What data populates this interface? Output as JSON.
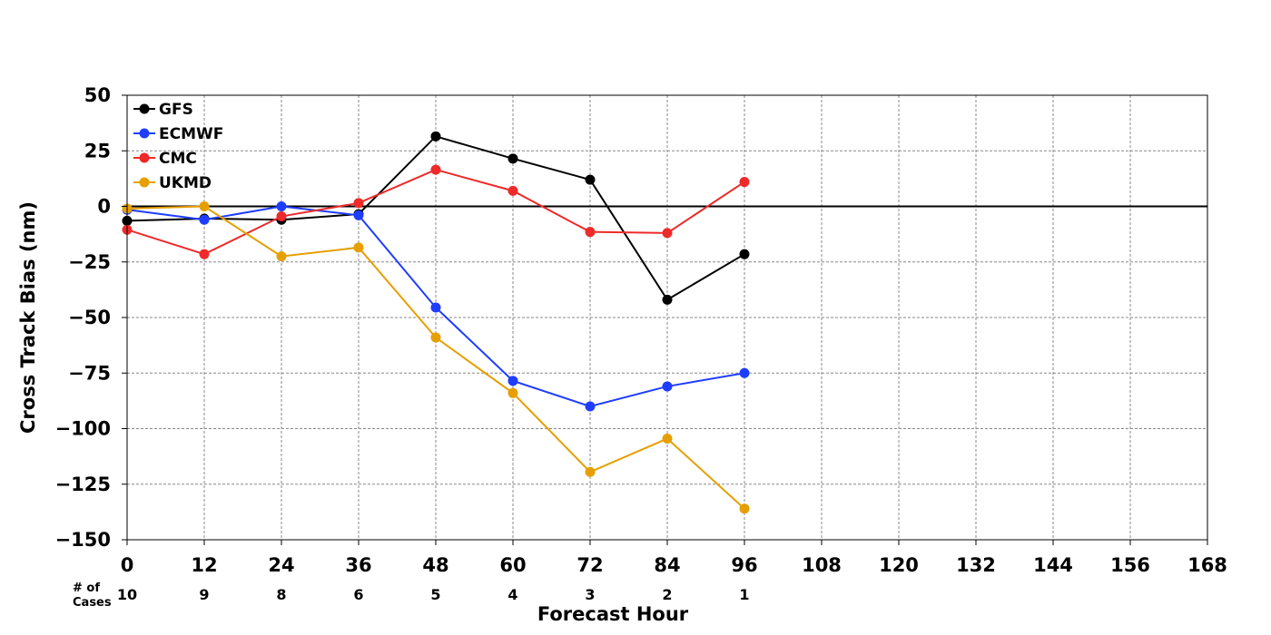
{
  "chart_data": {
    "type": "line",
    "title": "",
    "xlabel": "Forecast Hour",
    "ylabel": "Cross Track Bias (nm)",
    "xlim": [
      0,
      168
    ],
    "ylim": [
      -150,
      50
    ],
    "x_ticks": [
      0,
      12,
      24,
      36,
      48,
      60,
      72,
      84,
      96,
      108,
      120,
      132,
      144,
      156,
      168
    ],
    "x_tick_labels": [
      "0",
      "12",
      "24",
      "36",
      "48",
      "60",
      "72",
      "84",
      "96",
      "108",
      "120",
      "132",
      "144",
      "156",
      "168"
    ],
    "y_ticks": [
      50,
      25,
      0,
      -25,
      -50,
      -75,
      -100,
      -125,
      -150
    ],
    "y_tick_labels": [
      "50",
      "25",
      "0",
      "−25",
      "−50",
      "−75",
      "−100",
      "−125",
      "−150"
    ],
    "grid": true,
    "grid_style": "dashed",
    "zero_line": true,
    "legend_position": "top-left",
    "x": [
      0,
      12,
      24,
      36,
      48,
      60,
      72,
      84,
      96
    ],
    "series": [
      {
        "name": "GFS",
        "color": "#000000",
        "values": [
          -6.5,
          -5.5,
          -6.0,
          -3.5,
          31.5,
          21.5,
          12.0,
          -42.0,
          -21.5
        ]
      },
      {
        "name": "ECMWF",
        "color": "#1f3dff",
        "values": [
          -1.5,
          -6.0,
          0.0,
          -4.0,
          -45.5,
          -78.5,
          -90.0,
          -81.0,
          -75.0
        ]
      },
      {
        "name": "CMC",
        "color": "#ee2a2a",
        "values": [
          -10.5,
          -21.5,
          -4.5,
          1.5,
          16.5,
          7.0,
          -11.5,
          -12.0,
          11.0
        ]
      },
      {
        "name": "UKMD",
        "color": "#e69f00",
        "values": [
          -1.0,
          0.0,
          -22.5,
          -18.5,
          -59.0,
          -84.0,
          -119.5,
          -104.5,
          -136.0
        ]
      }
    ],
    "cases": {
      "label_line1": "# of",
      "label_line2": "Cases",
      "x": [
        0,
        12,
        24,
        36,
        48,
        60,
        72,
        84,
        96
      ],
      "values": [
        "10",
        "9",
        "8",
        "6",
        "5",
        "4",
        "3",
        "2",
        "1"
      ]
    }
  }
}
